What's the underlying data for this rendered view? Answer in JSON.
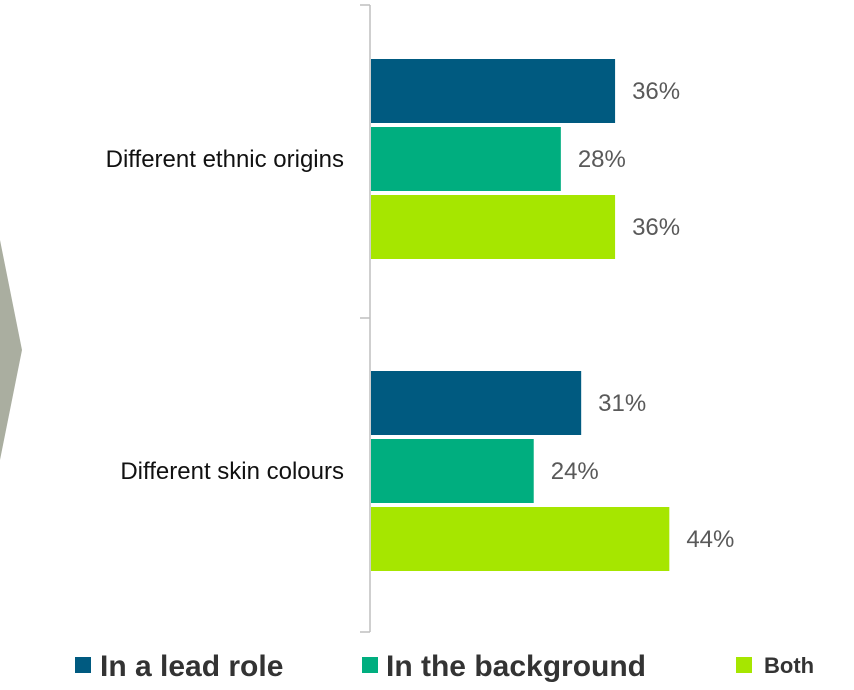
{
  "chart_data": {
    "type": "bar",
    "orientation": "horizontal",
    "categories": [
      "Different ethnic origins",
      "Different skin colours"
    ],
    "series": [
      {
        "name": "In a lead role",
        "values": [
          36,
          31
        ],
        "color": "#005A80"
      },
      {
        "name": "In the background",
        "values": [
          28,
          24
        ],
        "color": "#00AE7F"
      },
      {
        "name": "Both",
        "values": [
          36,
          44
        ],
        "color": "#A6E600"
      }
    ],
    "value_suffix": "%",
    "xlim": [
      0,
      100
    ],
    "grid": false,
    "legend_position": "bottom",
    "decoration": {
      "arrow_color": "#AAAEA0"
    }
  }
}
